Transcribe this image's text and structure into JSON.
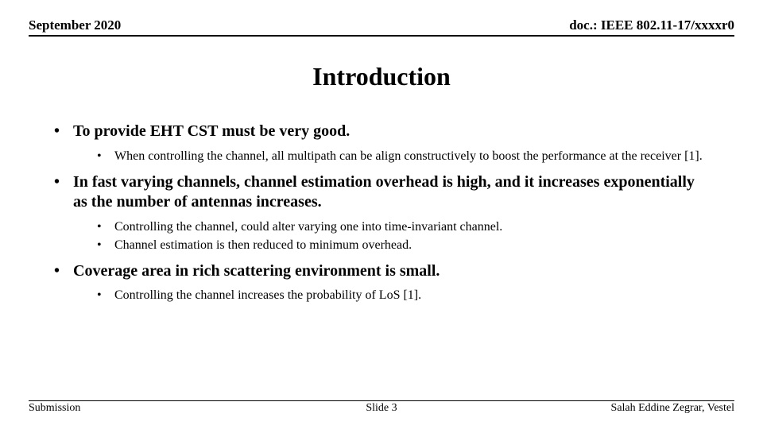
{
  "header": {
    "left": "September 2020",
    "right": "doc.: IEEE 802.11-17/xxxxr0"
  },
  "title": "Introduction",
  "bullets": [
    {
      "text": "To provide EHT CST must be very good.",
      "sub": [
        "When controlling the channel, all multipath can be align constructively to boost the performance at the receiver [1]."
      ]
    },
    {
      "text": "In fast varying channels, channel estimation overhead is high, and it increases exponentially as the number of antennas increases.",
      "sub": [
        "Controlling the channel, could alter varying one into time-invariant channel.",
        "Channel estimation is then reduced to minimum overhead."
      ]
    },
    {
      "text": "Coverage area in rich scattering environment is small.",
      "sub": [
        "Controlling the channel increases the probability of LoS [1]."
      ]
    }
  ],
  "footer": {
    "left": "Submission",
    "center": "Slide 3",
    "right": "Salah Eddine Zegrar, Vestel"
  },
  "style": {
    "background_color": "#ffffff",
    "text_color": "#000000",
    "rule_color": "#000000",
    "font_family": "Times New Roman",
    "header_fontsize": 17,
    "title_fontsize": 32,
    "level1_fontsize": 20,
    "level2_fontsize": 16,
    "footer_fontsize": 14
  }
}
